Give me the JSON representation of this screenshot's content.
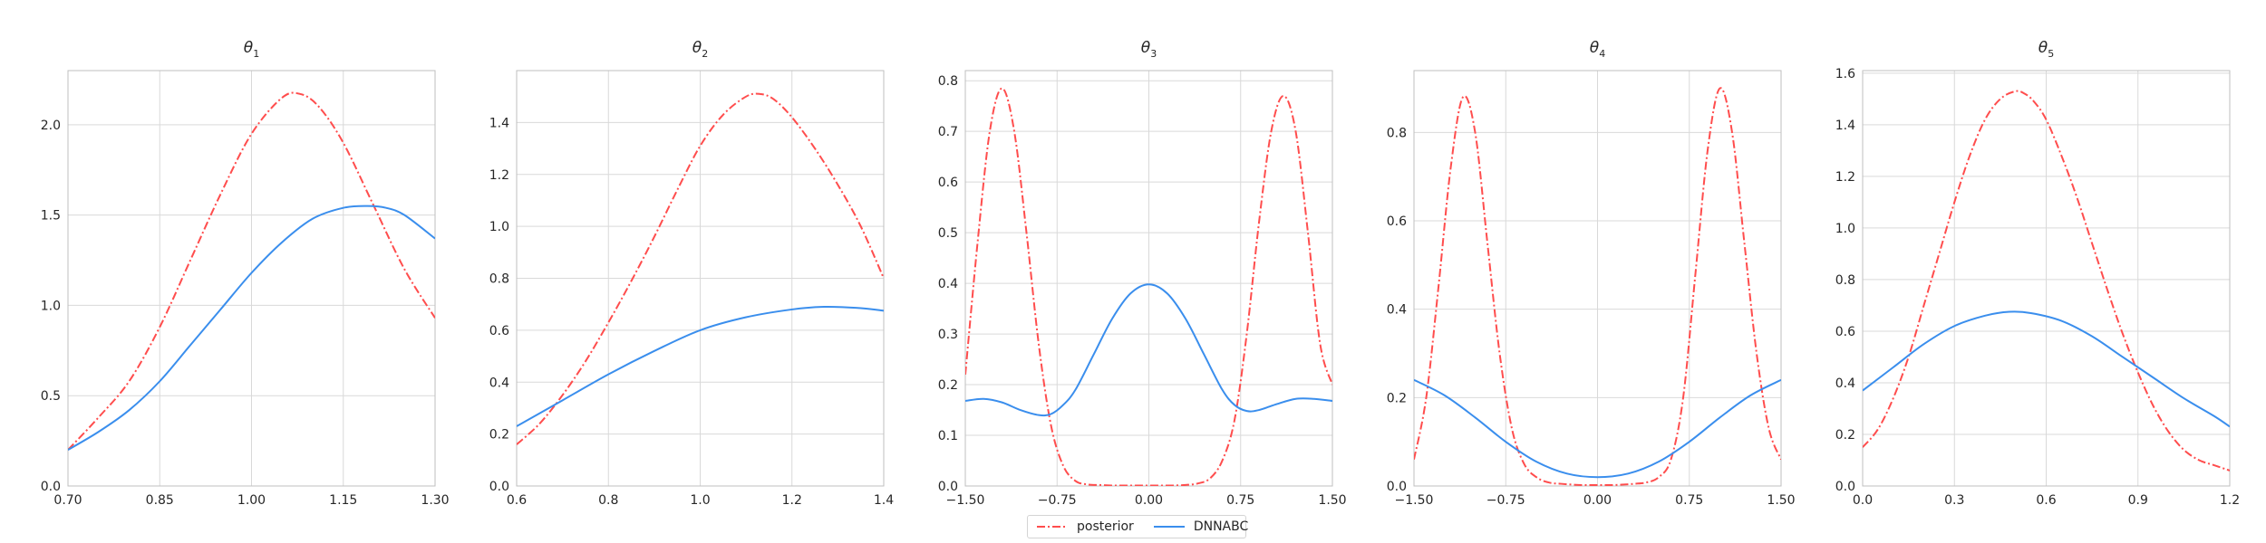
{
  "chart_data": [
    {
      "type": "line",
      "title": "θ",
      "title_sub": "1",
      "xlim": [
        0.7,
        1.3
      ],
      "ylim": [
        0.0,
        2.3
      ],
      "xticks": [
        "0.70",
        "0.85",
        "1.00",
        "1.15",
        "1.30"
      ],
      "yticks": [
        "0.0",
        "0.5",
        "1.0",
        "1.5",
        "2.0"
      ],
      "grid": true,
      "series": [
        {
          "name": "posterior",
          "x": [
            0.7,
            0.75,
            0.8,
            0.85,
            0.9,
            0.95,
            1.0,
            1.05,
            1.08,
            1.11,
            1.15,
            1.2,
            1.25,
            1.3
          ],
          "y": [
            0.2,
            0.38,
            0.58,
            0.88,
            1.25,
            1.62,
            1.95,
            2.15,
            2.17,
            2.1,
            1.9,
            1.55,
            1.2,
            0.93
          ]
        },
        {
          "name": "DNNABC",
          "x": [
            0.7,
            0.75,
            0.8,
            0.85,
            0.9,
            0.95,
            1.0,
            1.05,
            1.1,
            1.15,
            1.19,
            1.22,
            1.25,
            1.3
          ],
          "y": [
            0.2,
            0.3,
            0.42,
            0.58,
            0.78,
            0.98,
            1.18,
            1.35,
            1.48,
            1.54,
            1.55,
            1.54,
            1.5,
            1.37
          ]
        }
      ]
    },
    {
      "type": "line",
      "title": "θ",
      "title_sub": "2",
      "xlim": [
        0.6,
        1.4
      ],
      "ylim": [
        0.0,
        1.6
      ],
      "xticks": [
        "0.6",
        "0.8",
        "1.0",
        "1.2",
        "1.4"
      ],
      "yticks": [
        "0.0",
        "0.2",
        "0.4",
        "0.6",
        "0.8",
        "1.0",
        "1.2",
        "1.4"
      ],
      "grid": true,
      "series": [
        {
          "name": "posterior",
          "x": [
            0.6,
            0.65,
            0.7,
            0.75,
            0.8,
            0.85,
            0.9,
            0.95,
            1.0,
            1.05,
            1.1,
            1.13,
            1.16,
            1.2,
            1.25,
            1.3,
            1.35,
            1.4
          ],
          "y": [
            0.16,
            0.24,
            0.35,
            0.48,
            0.63,
            0.79,
            0.96,
            1.14,
            1.31,
            1.43,
            1.5,
            1.51,
            1.49,
            1.42,
            1.3,
            1.16,
            1.0,
            0.8
          ]
        },
        {
          "name": "DNNABC",
          "x": [
            0.6,
            0.7,
            0.8,
            0.9,
            1.0,
            1.1,
            1.2,
            1.27,
            1.35,
            1.4
          ],
          "y": [
            0.23,
            0.33,
            0.43,
            0.52,
            0.6,
            0.65,
            0.68,
            0.69,
            0.685,
            0.675
          ]
        }
      ]
    },
    {
      "type": "line",
      "title": "θ",
      "title_sub": "3",
      "xlim": [
        -1.5,
        1.5
      ],
      "ylim": [
        0.0,
        0.82
      ],
      "xticks": [
        "−1.50",
        "−0.75",
        "0.00",
        "0.75",
        "1.50"
      ],
      "yticks": [
        "0.0",
        "0.1",
        "0.2",
        "0.3",
        "0.4",
        "0.5",
        "0.6",
        "0.7",
        "0.8"
      ],
      "grid": true,
      "series": [
        {
          "name": "posterior",
          "x": [
            -1.5,
            -1.4,
            -1.3,
            -1.2,
            -1.1,
            -1.0,
            -0.9,
            -0.8,
            -0.7,
            -0.6,
            -0.5,
            -0.4,
            -0.3,
            -0.2,
            -0.1,
            0.0,
            0.1,
            0.2,
            0.3,
            0.4,
            0.5,
            0.6,
            0.7,
            0.8,
            0.9,
            1.0,
            1.1,
            1.2,
            1.3,
            1.4,
            1.5
          ],
          "y": [
            0.22,
            0.48,
            0.7,
            0.785,
            0.7,
            0.5,
            0.28,
            0.12,
            0.04,
            0.01,
            0.003,
            0.002,
            0.001,
            0.001,
            0.001,
            0.001,
            0.001,
            0.001,
            0.002,
            0.005,
            0.015,
            0.05,
            0.13,
            0.3,
            0.52,
            0.7,
            0.77,
            0.7,
            0.5,
            0.28,
            0.2
          ]
        },
        {
          "name": "DNNABC",
          "x": [
            -1.5,
            -1.35,
            -1.2,
            -1.05,
            -0.9,
            -0.8,
            -0.7,
            -0.6,
            -0.45,
            -0.3,
            -0.15,
            0.0,
            0.15,
            0.3,
            0.45,
            0.6,
            0.7,
            0.8,
            0.9,
            1.05,
            1.2,
            1.35,
            1.5
          ],
          "y": [
            0.168,
            0.172,
            0.165,
            0.15,
            0.14,
            0.142,
            0.16,
            0.19,
            0.26,
            0.33,
            0.38,
            0.398,
            0.38,
            0.33,
            0.26,
            0.19,
            0.16,
            0.148,
            0.15,
            0.162,
            0.172,
            0.172,
            0.168
          ]
        }
      ]
    },
    {
      "type": "line",
      "title": "θ",
      "title_sub": "4",
      "xlim": [
        -1.5,
        1.5
      ],
      "ylim": [
        0.0,
        0.94
      ],
      "xticks": [
        "−1.50",
        "−0.75",
        "0.00",
        "0.75",
        "1.50"
      ],
      "yticks": [
        "0.0",
        "0.2",
        "0.4",
        "0.6",
        "0.8"
      ],
      "grid": true,
      "series": [
        {
          "name": "posterior",
          "x": [
            -1.5,
            -1.4,
            -1.3,
            -1.2,
            -1.1,
            -1.0,
            -0.9,
            -0.8,
            -0.7,
            -0.6,
            -0.5,
            -0.4,
            -0.3,
            -0.2,
            -0.1,
            0.0,
            0.1,
            0.2,
            0.3,
            0.4,
            0.5,
            0.6,
            0.7,
            0.8,
            0.9,
            1.0,
            1.1,
            1.2,
            1.3,
            1.4,
            1.5
          ],
          "y": [
            0.06,
            0.2,
            0.45,
            0.72,
            0.88,
            0.8,
            0.55,
            0.3,
            0.13,
            0.05,
            0.02,
            0.008,
            0.005,
            0.003,
            0.002,
            0.002,
            0.002,
            0.003,
            0.005,
            0.008,
            0.02,
            0.06,
            0.2,
            0.48,
            0.76,
            0.9,
            0.8,
            0.55,
            0.3,
            0.13,
            0.06
          ]
        },
        {
          "name": "DNNABC",
          "x": [
            -1.5,
            -1.25,
            -1.0,
            -0.75,
            -0.5,
            -0.25,
            0.0,
            0.25,
            0.5,
            0.75,
            1.0,
            1.25,
            1.5
          ],
          "y": [
            0.24,
            0.205,
            0.155,
            0.1,
            0.055,
            0.028,
            0.02,
            0.028,
            0.055,
            0.1,
            0.155,
            0.205,
            0.24
          ]
        }
      ]
    },
    {
      "type": "line",
      "title": "θ",
      "title_sub": "5",
      "xlim": [
        0.0,
        1.2
      ],
      "ylim": [
        0.0,
        1.61
      ],
      "xticks": [
        "0.0",
        "0.3",
        "0.6",
        "0.9",
        "1.2"
      ],
      "yticks": [
        "0.0",
        "0.2",
        "0.4",
        "0.6",
        "0.8",
        "1.0",
        "1.2",
        "1.4",
        "1.6"
      ],
      "grid": true,
      "series": [
        {
          "name": "posterior",
          "x": [
            0.0,
            0.05,
            0.1,
            0.15,
            0.2,
            0.25,
            0.3,
            0.35,
            0.4,
            0.45,
            0.5,
            0.53,
            0.56,
            0.6,
            0.65,
            0.7,
            0.75,
            0.8,
            0.85,
            0.9,
            0.95,
            1.0,
            1.05,
            1.1,
            1.15,
            1.2
          ],
          "y": [
            0.15,
            0.22,
            0.34,
            0.5,
            0.7,
            0.9,
            1.1,
            1.28,
            1.42,
            1.5,
            1.53,
            1.52,
            1.49,
            1.42,
            1.28,
            1.12,
            0.94,
            0.76,
            0.59,
            0.44,
            0.31,
            0.21,
            0.14,
            0.1,
            0.08,
            0.06
          ]
        },
        {
          "name": "DNNABC",
          "x": [
            0.0,
            0.1,
            0.2,
            0.3,
            0.4,
            0.48,
            0.55,
            0.65,
            0.75,
            0.85,
            0.95,
            1.05,
            1.15,
            1.2
          ],
          "y": [
            0.37,
            0.46,
            0.55,
            0.62,
            0.66,
            0.675,
            0.67,
            0.64,
            0.58,
            0.5,
            0.42,
            0.34,
            0.27,
            0.23
          ]
        }
      ]
    }
  ],
  "colors": {
    "posterior": "#ff4d4d",
    "DNNABC": "#3a8eed",
    "grid": "#d9d9d9",
    "axis": "#bfbfbf"
  },
  "legend": {
    "placement": "bottom-center",
    "entries": [
      {
        "label": "posterior",
        "style": "dashdot",
        "color": "#ff4d4d"
      },
      {
        "label": "DNNABC",
        "style": "solid",
        "color": "#3a8eed"
      }
    ]
  }
}
